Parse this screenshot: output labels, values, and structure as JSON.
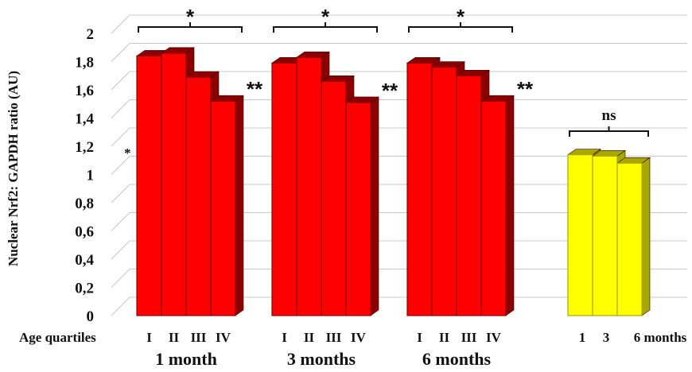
{
  "chart_data": {
    "type": "bar",
    "ylabel": "Nuclear Nrf2: GAPDH ratio (AU)",
    "xlabel": "Age quartiles",
    "ylim": [
      0,
      2
    ],
    "yticks": [
      "0",
      "0,2",
      "0,4",
      "0,6",
      "0,8",
      "1",
      "1,2",
      "1,4",
      "1,6",
      "1,8",
      "2"
    ],
    "grid": true,
    "groups": [
      {
        "label": "1 month",
        "color": "#ff0000",
        "side_color": "#8b0000",
        "categories": [
          "I",
          "II",
          "III",
          "IV"
        ],
        "values": [
          1.84,
          1.86,
          1.69,
          1.52
        ],
        "bracket_label": "*",
        "last_bar_label": "**"
      },
      {
        "label": "3 months",
        "color": "#ff0000",
        "side_color": "#8b0000",
        "categories": [
          "I",
          "II",
          "III",
          "IV"
        ],
        "values": [
          1.79,
          1.83,
          1.66,
          1.51
        ],
        "bracket_label": "*",
        "last_bar_label": "**"
      },
      {
        "label": "6 months",
        "color": "#ff0000",
        "side_color": "#8b0000",
        "categories": [
          "I",
          "II",
          "III",
          "IV"
        ],
        "values": [
          1.79,
          1.76,
          1.7,
          1.52
        ],
        "bracket_label": "*",
        "last_bar_label": "**"
      },
      {
        "label": "",
        "color": "#ffff00",
        "side_color": "#a8a800",
        "categories": [
          "1",
          "3",
          "6 months"
        ],
        "values": [
          1.14,
          1.13,
          1.08
        ],
        "bracket_label": "ns",
        "last_bar_label": ""
      }
    ],
    "annotations": [
      "*"
    ]
  }
}
